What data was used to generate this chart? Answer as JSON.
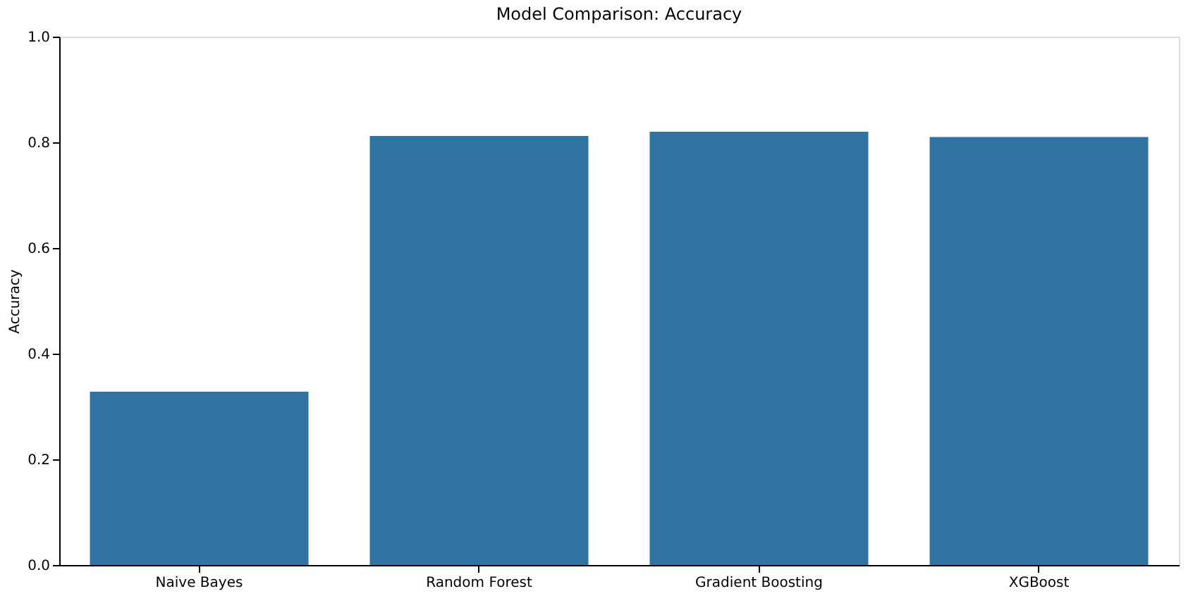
{
  "chart_data": {
    "type": "bar",
    "title": "Model Comparison: Accuracy",
    "ylabel": "Accuracy",
    "categories": [
      "Naive Bayes",
      "Random Forest",
      "Gradient Boosting",
      "XGBoost"
    ],
    "values": [
      0.328,
      0.812,
      0.82,
      0.81
    ],
    "color": "#3274a1",
    "ylim": [
      0,
      1
    ],
    "yticks": [
      {
        "value": 0,
        "label": "0.0"
      },
      0.2,
      0.4,
      0.6,
      0.8,
      {
        "value": 1,
        "label": "1.0"
      }
    ],
    "grid": false
  }
}
